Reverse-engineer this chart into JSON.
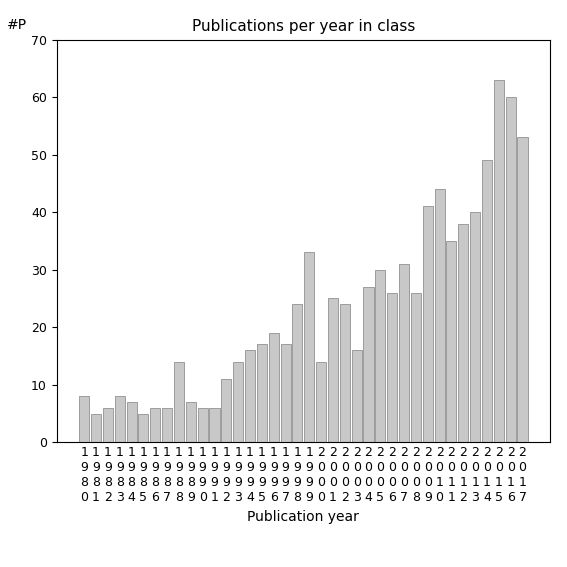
{
  "title": "Publications per year in class",
  "xlabel": "Publication year",
  "ylabel": "#P",
  "ylim": [
    0,
    70
  ],
  "yticks": [
    0,
    10,
    20,
    30,
    40,
    50,
    60,
    70
  ],
  "years": [
    1980,
    1981,
    1982,
    1983,
    1984,
    1985,
    1986,
    1987,
    1988,
    1989,
    1990,
    1991,
    1992,
    1993,
    1994,
    1995,
    1996,
    1997,
    1998,
    1999,
    2000,
    2001,
    2002,
    2003,
    2004,
    2005,
    2006,
    2007,
    2008,
    2009,
    2010,
    2011,
    2012,
    2013,
    2014,
    2015,
    2016,
    2017
  ],
  "values": [
    8,
    5,
    6,
    8,
    7,
    5,
    6,
    6,
    14,
    7,
    6,
    6,
    11,
    14,
    16,
    17,
    19,
    17,
    24,
    33,
    14,
    25,
    24,
    16,
    27,
    30,
    26,
    31,
    26,
    41,
    44,
    35,
    38,
    40,
    49,
    63,
    60,
    53
  ],
  "bar_color": "#c8c8c8",
  "bar_edge_color": "#808080",
  "background_color": "#ffffff",
  "title_fontsize": 11,
  "label_fontsize": 10,
  "tick_fontsize": 9
}
